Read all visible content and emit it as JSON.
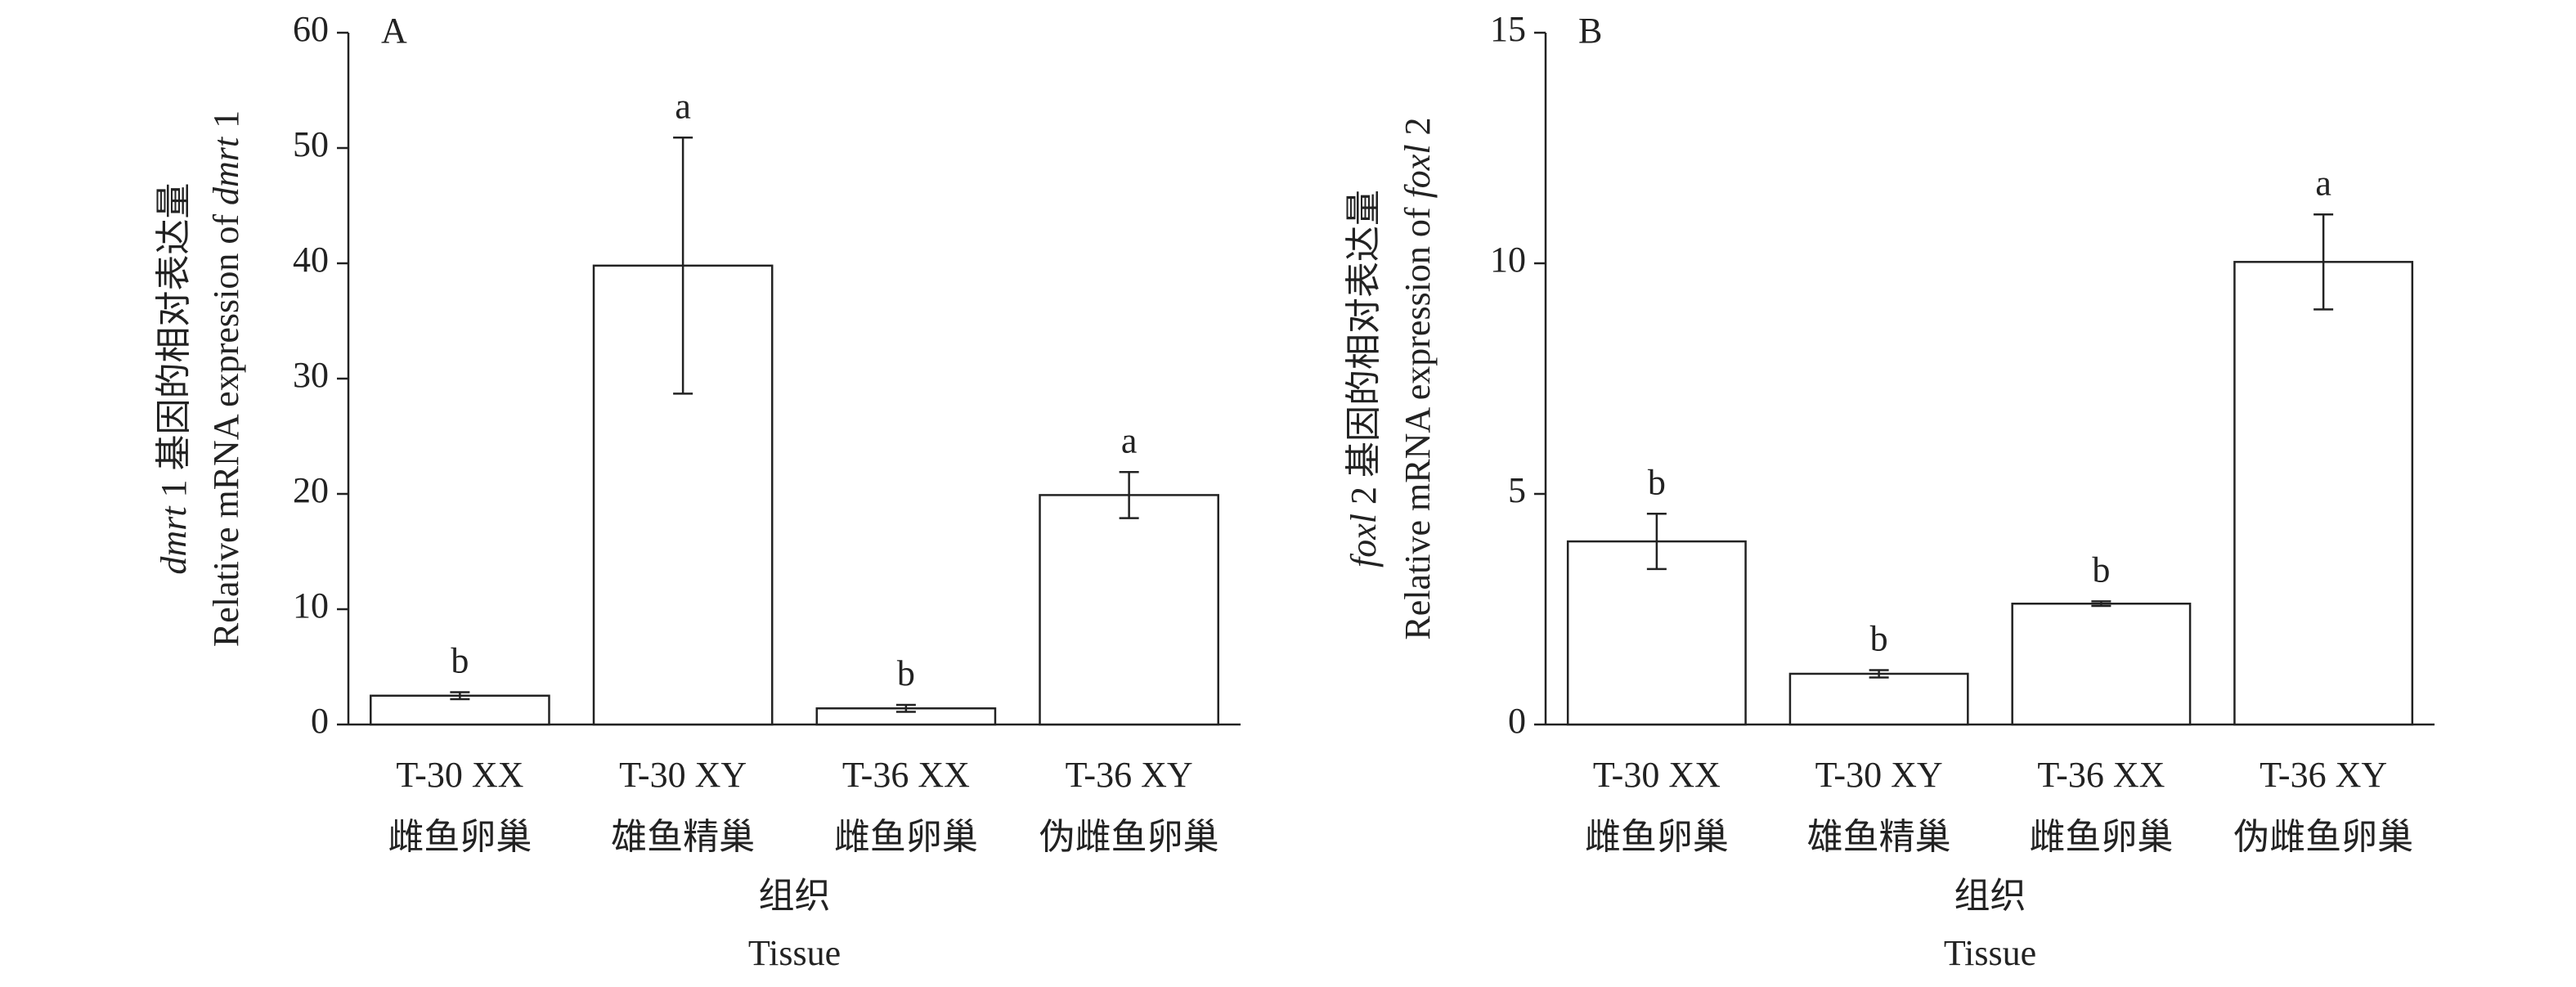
{
  "chart_data": [
    {
      "type": "bar",
      "panel": "A",
      "ylabel": [
        [
          "dmrt",
          " 1 基因的相对表达量"
        ],
        [
          "Relative mRNA expression of ",
          "dmrt",
          " 1"
        ]
      ],
      "xlabel": [
        "组织",
        "Tissue"
      ],
      "categories": [
        [
          "T-30 XX",
          "雌鱼卵巢"
        ],
        [
          "T-30 XY",
          "雄鱼精巢"
        ],
        [
          "T-36 XX",
          "雌鱼卵巢"
        ],
        [
          "T-36 XY",
          "伪雌鱼卵巢"
        ]
      ],
      "values": [
        2.5,
        39.8,
        1.4,
        19.9
      ],
      "errors": [
        0.3,
        11.1,
        0.3,
        2.0
      ],
      "value_labels": [
        "b",
        "a",
        "b",
        "a"
      ],
      "color": "#ffffff",
      "ylim": [
        0,
        60
      ],
      "yticks": [
        0,
        10,
        20,
        30,
        40,
        50,
        60
      ]
    },
    {
      "type": "bar",
      "panel": "B",
      "ylabel": [
        [
          "foxl",
          " 2 基因的相对表达量"
        ],
        [
          "Relative mRNA expression of ",
          "foxl",
          " 2"
        ]
      ],
      "xlabel": [
        "组织",
        "Tissue"
      ],
      "categories": [
        [
          "T-30 XX",
          "雌鱼卵巢"
        ],
        [
          "T-30 XY",
          "雄鱼精巢"
        ],
        [
          "T-36 XX",
          "雌鱼卵巢"
        ],
        [
          "T-36 XY",
          "伪雌鱼卵巢"
        ]
      ],
      "values": [
        3.97,
        1.1,
        2.62,
        10.03
      ],
      "errors": [
        0.6,
        0.08,
        0.05,
        1.03
      ],
      "value_labels": [
        "b",
        "b",
        "b",
        "a"
      ],
      "color": "#ffffff",
      "ylim": [
        0,
        15
      ],
      "yticks": [
        0,
        5,
        10,
        15
      ]
    }
  ]
}
